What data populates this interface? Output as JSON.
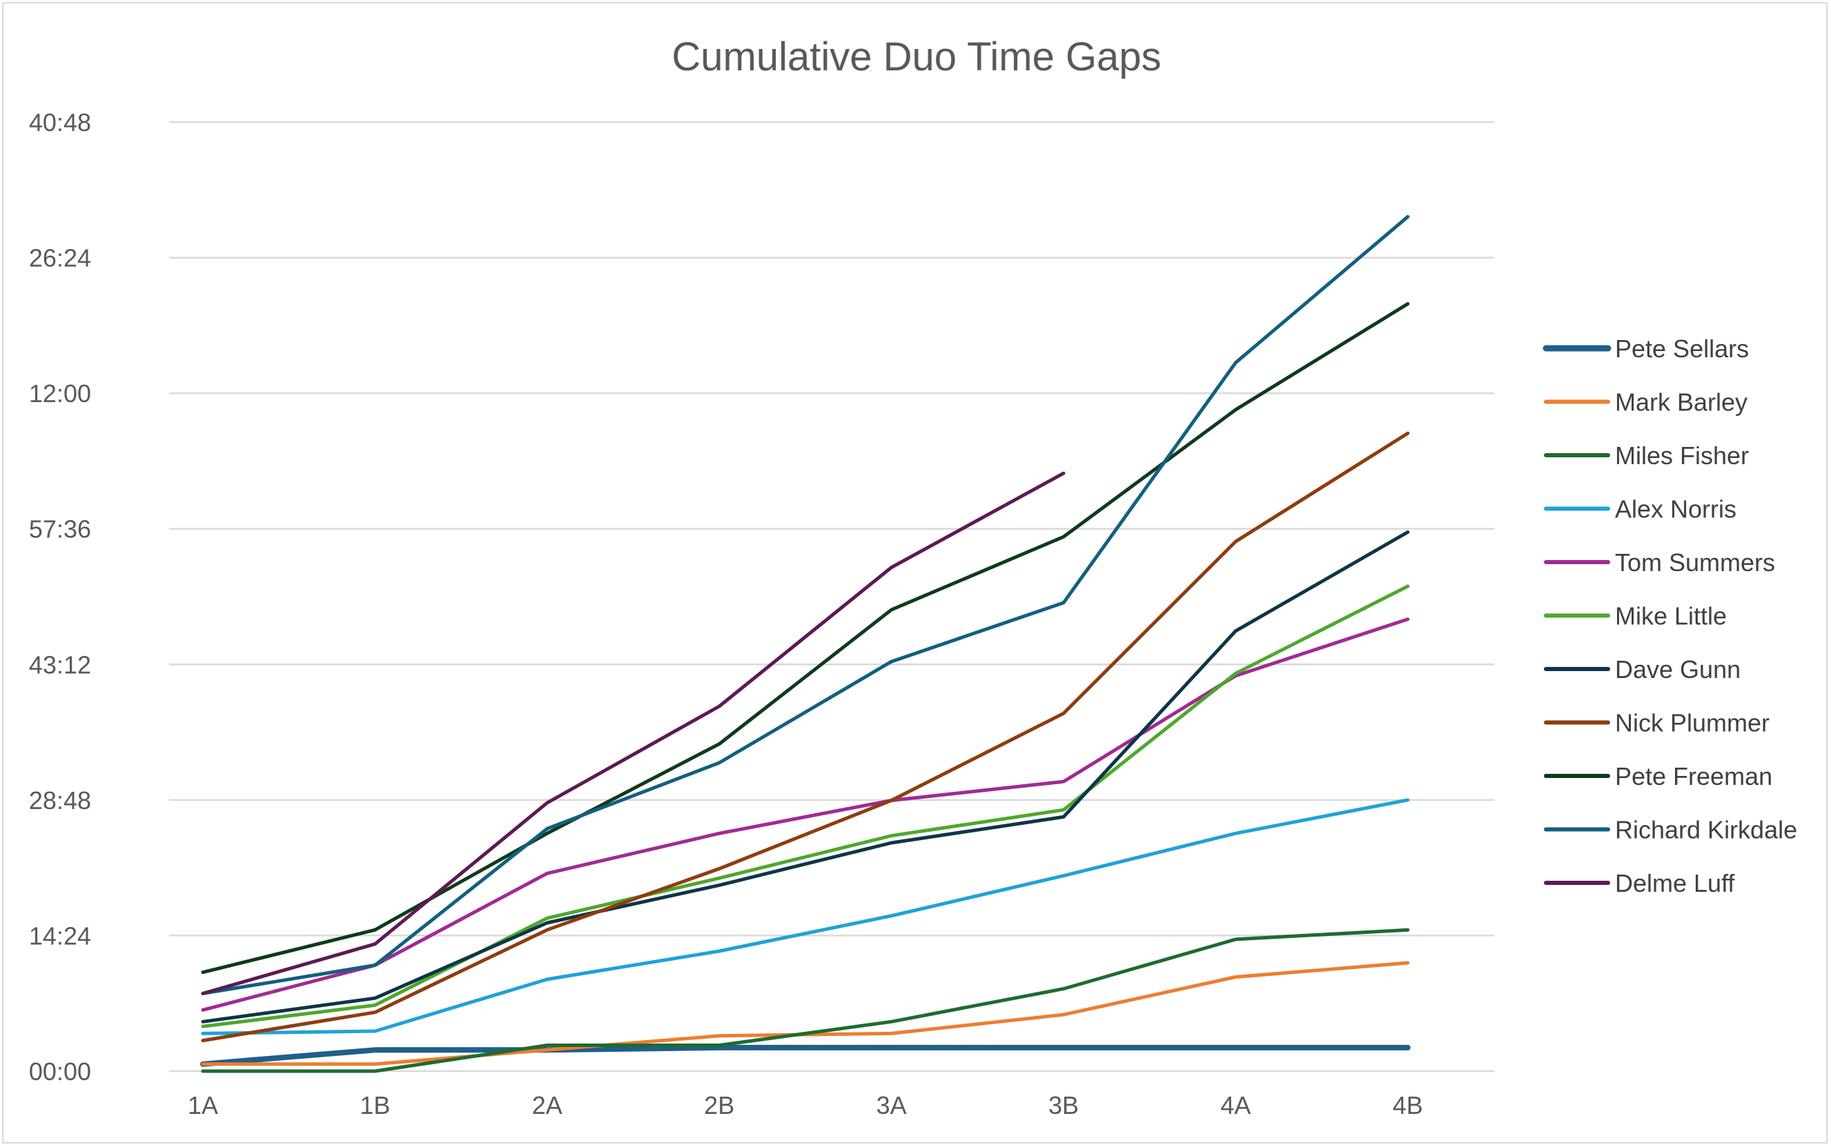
{
  "chart_data": {
    "type": "line",
    "title": "Cumulative Duo Time Gaps",
    "xlabel": "",
    "ylabel": "",
    "categories": [
      "1A",
      "1B",
      "2A",
      "2B",
      "3A",
      "3B",
      "4A",
      "4B"
    ],
    "y_unit": "minutes:seconds",
    "ylim_seconds": [
      0,
      2448
    ],
    "y_ticks": [
      {
        "label": "00:00",
        "value": 0
      },
      {
        "label": "14:24",
        "value": 864
      },
      {
        "label": "28:48",
        "value": 1728
      },
      {
        "label": "43:12",
        "value": 2592
      },
      {
        "label": "57:36",
        "value": 3456
      },
      {
        "label": "12:00",
        "value": 4320
      },
      {
        "label": "26:24",
        "value": 5184
      },
      {
        "label": "40:48",
        "value": 6048
      }
    ],
    "grid": true,
    "legend_position": "right",
    "series": [
      {
        "name": "Pete Sellars",
        "color": "#1f5f8b",
        "width": 8,
        "values": [
          45,
          135,
          135,
          150,
          150,
          150,
          150,
          150
        ]
      },
      {
        "name": "Mark Barley",
        "color": "#ed7d31",
        "width": 5,
        "values": [
          45,
          45,
          135,
          225,
          240,
          360,
          600,
          690
        ]
      },
      {
        "name": "Miles Fisher",
        "color": "#1e6b2e",
        "width": 5,
        "values": [
          0,
          0,
          165,
          165,
          315,
          525,
          840,
          900
        ]
      },
      {
        "name": "Alex Norris",
        "color": "#1fa2d8",
        "width": 5,
        "values": [
          240,
          255,
          585,
          765,
          990,
          1245,
          1515,
          1728
        ]
      },
      {
        "name": "Tom Summers",
        "color": "#a02b93",
        "width": 5,
        "values": [
          390,
          675,
          1260,
          1515,
          1725,
          1845,
          2520,
          2880
        ]
      },
      {
        "name": "Mike Little",
        "color": "#4ea72e",
        "width": 5,
        "values": [
          285,
          420,
          975,
          1230,
          1500,
          1665,
          2535,
          3090
        ]
      },
      {
        "name": "Dave Gunn",
        "color": "#0e3547",
        "width": 5,
        "values": [
          315,
          465,
          945,
          1185,
          1455,
          1620,
          2805,
          3435
        ]
      },
      {
        "name": "Nick Plummer",
        "color": "#8f3c0f",
        "width": 5,
        "values": [
          195,
          375,
          900,
          1290,
          1725,
          2280,
          3375,
          4065
        ]
      },
      {
        "name": "Pete Freeman",
        "color": "#0f3a1b",
        "width": 5,
        "values": [
          630,
          900,
          1515,
          2085,
          2940,
          3405,
          4215,
          4890
        ]
      },
      {
        "name": "Richard Kirkdale",
        "color": "#125f80",
        "width": 5,
        "values": [
          495,
          675,
          1545,
          1965,
          2610,
          2985,
          4515,
          5445
        ]
      },
      {
        "name": "Delme Luff",
        "color": "#5c1a52",
        "width": 5,
        "values": [
          495,
          810,
          1710,
          2325,
          3210,
          3810,
          null,
          null
        ]
      }
    ]
  }
}
